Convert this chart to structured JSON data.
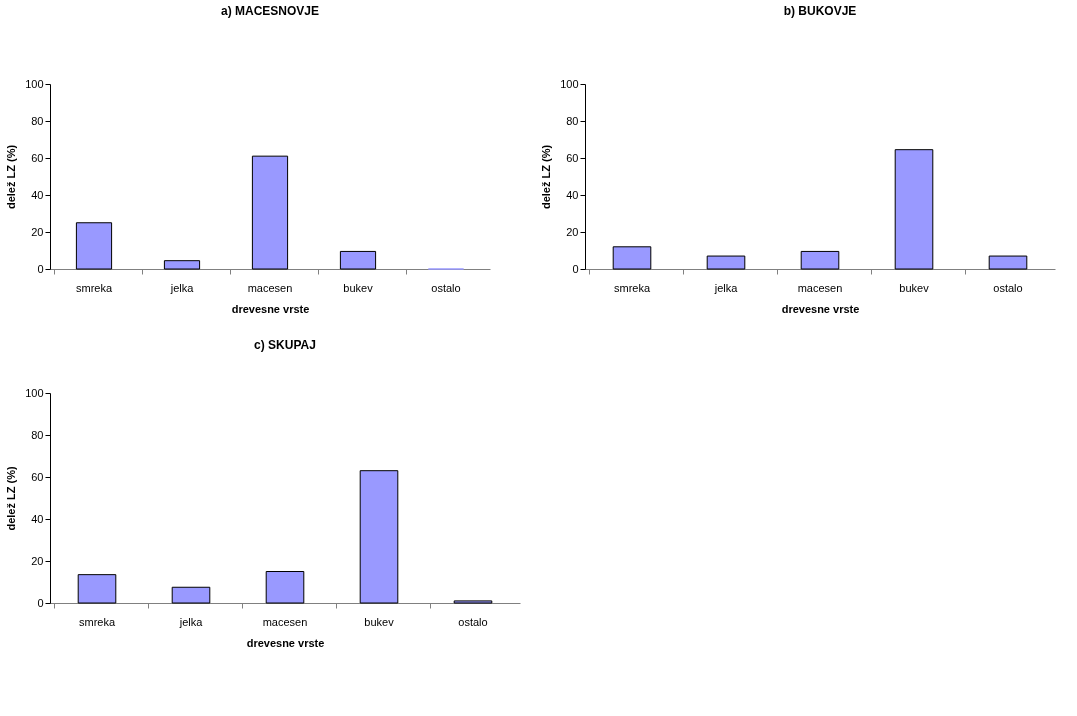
{
  "chart_data": [
    {
      "type": "bar",
      "title": "a) MACESNOVJE",
      "xlabel": "drevesne vrste",
      "ylabel": "delež LZ (%)",
      "categories": [
        "smreka",
        "jelka",
        "macesen",
        "bukev",
        "ostalo"
      ],
      "values": [
        25,
        4.5,
        61,
        9.5,
        0
      ],
      "color": "#9999ff",
      "ylim": [
        0,
        100
      ],
      "yticks": [
        0,
        20,
        40,
        60,
        80,
        100
      ],
      "grid": false
    },
    {
      "type": "bar",
      "title": "b) BUKOVJE",
      "xlabel": "drevesne vrste",
      "ylabel": "delež LZ (%)",
      "categories": [
        "smreka",
        "jelka",
        "macesen",
        "bukev",
        "ostalo"
      ],
      "values": [
        12,
        7,
        9.5,
        64.5,
        7
      ],
      "color": "#9999ff",
      "ylim": [
        0,
        100
      ],
      "yticks": [
        0,
        20,
        40,
        60,
        80,
        100
      ],
      "grid": false
    },
    {
      "type": "bar",
      "title": "c) SKUPAJ",
      "xlabel": "drevesne vrste",
      "ylabel": "delež LZ (%)",
      "categories": [
        "smreka",
        "jelka",
        "macesen",
        "bukev",
        "ostalo"
      ],
      "values": [
        13.5,
        7.5,
        15,
        63,
        1
      ],
      "color": "#9999ff",
      "ylim": [
        0,
        100
      ],
      "yticks": [
        0,
        20,
        40,
        60,
        80,
        100
      ],
      "grid": false
    }
  ]
}
